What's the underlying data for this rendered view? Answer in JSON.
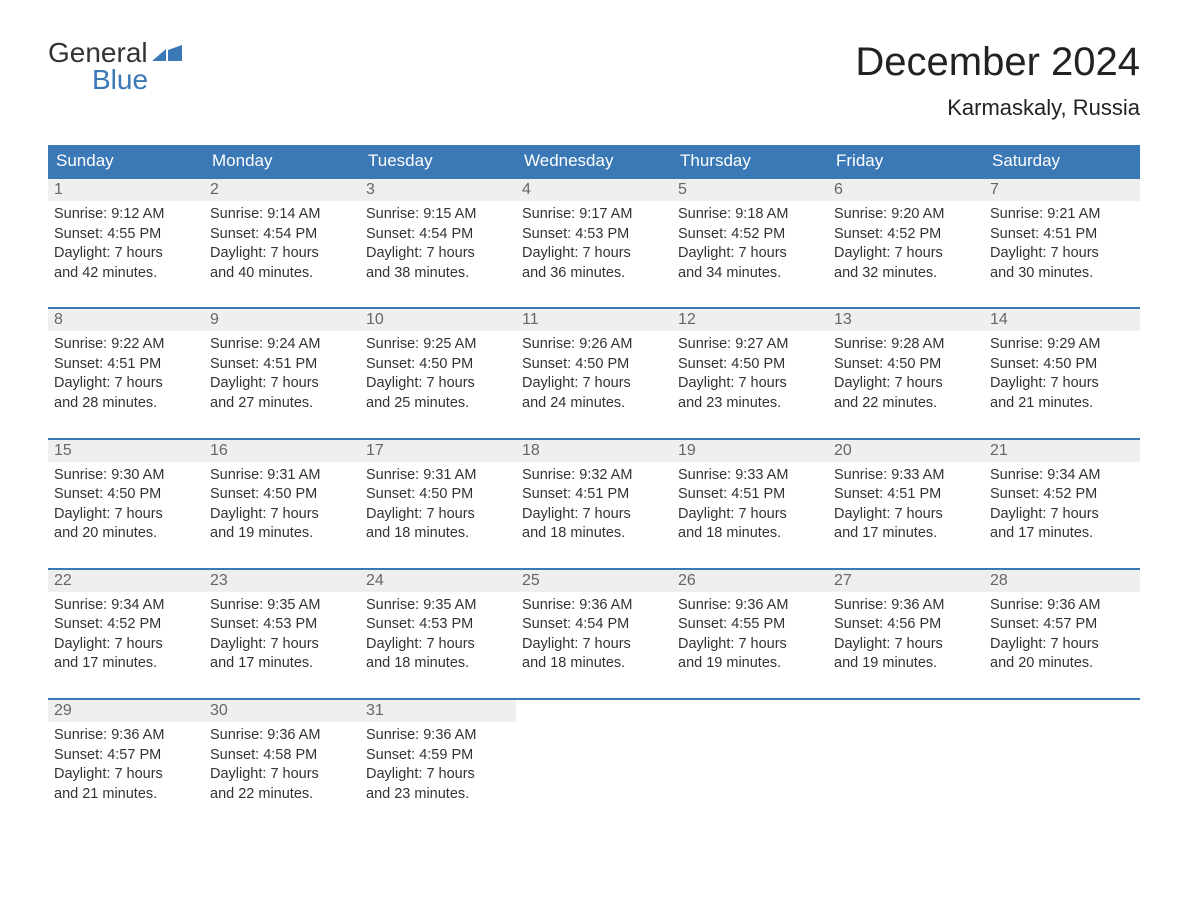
{
  "logo": {
    "text1": "General",
    "text2": "Blue"
  },
  "title": "December 2024",
  "location": "Karmaskaly, Russia",
  "colors": {
    "header_bg": "#3a78b6",
    "header_text": "#ffffff",
    "day_number_bg": "#efefef",
    "day_number_text": "#666666",
    "body_text": "#333333",
    "border": "#3a78b6",
    "logo_blue": "#3a78b6"
  },
  "columns": [
    "Sunday",
    "Monday",
    "Tuesday",
    "Wednesday",
    "Thursday",
    "Friday",
    "Saturday"
  ],
  "weeks": [
    [
      {
        "day": "1",
        "sunrise": "Sunrise: 9:12 AM",
        "sunset": "Sunset: 4:55 PM",
        "d1": "Daylight: 7 hours",
        "d2": "and 42 minutes."
      },
      {
        "day": "2",
        "sunrise": "Sunrise: 9:14 AM",
        "sunset": "Sunset: 4:54 PM",
        "d1": "Daylight: 7 hours",
        "d2": "and 40 minutes."
      },
      {
        "day": "3",
        "sunrise": "Sunrise: 9:15 AM",
        "sunset": "Sunset: 4:54 PM",
        "d1": "Daylight: 7 hours",
        "d2": "and 38 minutes."
      },
      {
        "day": "4",
        "sunrise": "Sunrise: 9:17 AM",
        "sunset": "Sunset: 4:53 PM",
        "d1": "Daylight: 7 hours",
        "d2": "and 36 minutes."
      },
      {
        "day": "5",
        "sunrise": "Sunrise: 9:18 AM",
        "sunset": "Sunset: 4:52 PM",
        "d1": "Daylight: 7 hours",
        "d2": "and 34 minutes."
      },
      {
        "day": "6",
        "sunrise": "Sunrise: 9:20 AM",
        "sunset": "Sunset: 4:52 PM",
        "d1": "Daylight: 7 hours",
        "d2": "and 32 minutes."
      },
      {
        "day": "7",
        "sunrise": "Sunrise: 9:21 AM",
        "sunset": "Sunset: 4:51 PM",
        "d1": "Daylight: 7 hours",
        "d2": "and 30 minutes."
      }
    ],
    [
      {
        "day": "8",
        "sunrise": "Sunrise: 9:22 AM",
        "sunset": "Sunset: 4:51 PM",
        "d1": "Daylight: 7 hours",
        "d2": "and 28 minutes."
      },
      {
        "day": "9",
        "sunrise": "Sunrise: 9:24 AM",
        "sunset": "Sunset: 4:51 PM",
        "d1": "Daylight: 7 hours",
        "d2": "and 27 minutes."
      },
      {
        "day": "10",
        "sunrise": "Sunrise: 9:25 AM",
        "sunset": "Sunset: 4:50 PM",
        "d1": "Daylight: 7 hours",
        "d2": "and 25 minutes."
      },
      {
        "day": "11",
        "sunrise": "Sunrise: 9:26 AM",
        "sunset": "Sunset: 4:50 PM",
        "d1": "Daylight: 7 hours",
        "d2": "and 24 minutes."
      },
      {
        "day": "12",
        "sunrise": "Sunrise: 9:27 AM",
        "sunset": "Sunset: 4:50 PM",
        "d1": "Daylight: 7 hours",
        "d2": "and 23 minutes."
      },
      {
        "day": "13",
        "sunrise": "Sunrise: 9:28 AM",
        "sunset": "Sunset: 4:50 PM",
        "d1": "Daylight: 7 hours",
        "d2": "and 22 minutes."
      },
      {
        "day": "14",
        "sunrise": "Sunrise: 9:29 AM",
        "sunset": "Sunset: 4:50 PM",
        "d1": "Daylight: 7 hours",
        "d2": "and 21 minutes."
      }
    ],
    [
      {
        "day": "15",
        "sunrise": "Sunrise: 9:30 AM",
        "sunset": "Sunset: 4:50 PM",
        "d1": "Daylight: 7 hours",
        "d2": "and 20 minutes."
      },
      {
        "day": "16",
        "sunrise": "Sunrise: 9:31 AM",
        "sunset": "Sunset: 4:50 PM",
        "d1": "Daylight: 7 hours",
        "d2": "and 19 minutes."
      },
      {
        "day": "17",
        "sunrise": "Sunrise: 9:31 AM",
        "sunset": "Sunset: 4:50 PM",
        "d1": "Daylight: 7 hours",
        "d2": "and 18 minutes."
      },
      {
        "day": "18",
        "sunrise": "Sunrise: 9:32 AM",
        "sunset": "Sunset: 4:51 PM",
        "d1": "Daylight: 7 hours",
        "d2": "and 18 minutes."
      },
      {
        "day": "19",
        "sunrise": "Sunrise: 9:33 AM",
        "sunset": "Sunset: 4:51 PM",
        "d1": "Daylight: 7 hours",
        "d2": "and 18 minutes."
      },
      {
        "day": "20",
        "sunrise": "Sunrise: 9:33 AM",
        "sunset": "Sunset: 4:51 PM",
        "d1": "Daylight: 7 hours",
        "d2": "and 17 minutes."
      },
      {
        "day": "21",
        "sunrise": "Sunrise: 9:34 AM",
        "sunset": "Sunset: 4:52 PM",
        "d1": "Daylight: 7 hours",
        "d2": "and 17 minutes."
      }
    ],
    [
      {
        "day": "22",
        "sunrise": "Sunrise: 9:34 AM",
        "sunset": "Sunset: 4:52 PM",
        "d1": "Daylight: 7 hours",
        "d2": "and 17 minutes."
      },
      {
        "day": "23",
        "sunrise": "Sunrise: 9:35 AM",
        "sunset": "Sunset: 4:53 PM",
        "d1": "Daylight: 7 hours",
        "d2": "and 17 minutes."
      },
      {
        "day": "24",
        "sunrise": "Sunrise: 9:35 AM",
        "sunset": "Sunset: 4:53 PM",
        "d1": "Daylight: 7 hours",
        "d2": "and 18 minutes."
      },
      {
        "day": "25",
        "sunrise": "Sunrise: 9:36 AM",
        "sunset": "Sunset: 4:54 PM",
        "d1": "Daylight: 7 hours",
        "d2": "and 18 minutes."
      },
      {
        "day": "26",
        "sunrise": "Sunrise: 9:36 AM",
        "sunset": "Sunset: 4:55 PM",
        "d1": "Daylight: 7 hours",
        "d2": "and 19 minutes."
      },
      {
        "day": "27",
        "sunrise": "Sunrise: 9:36 AM",
        "sunset": "Sunset: 4:56 PM",
        "d1": "Daylight: 7 hours",
        "d2": "and 19 minutes."
      },
      {
        "day": "28",
        "sunrise": "Sunrise: 9:36 AM",
        "sunset": "Sunset: 4:57 PM",
        "d1": "Daylight: 7 hours",
        "d2": "and 20 minutes."
      }
    ],
    [
      {
        "day": "29",
        "sunrise": "Sunrise: 9:36 AM",
        "sunset": "Sunset: 4:57 PM",
        "d1": "Daylight: 7 hours",
        "d2": "and 21 minutes."
      },
      {
        "day": "30",
        "sunrise": "Sunrise: 9:36 AM",
        "sunset": "Sunset: 4:58 PM",
        "d1": "Daylight: 7 hours",
        "d2": "and 22 minutes."
      },
      {
        "day": "31",
        "sunrise": "Sunrise: 9:36 AM",
        "sunset": "Sunset: 4:59 PM",
        "d1": "Daylight: 7 hours",
        "d2": "and 23 minutes."
      },
      null,
      null,
      null,
      null
    ]
  ]
}
